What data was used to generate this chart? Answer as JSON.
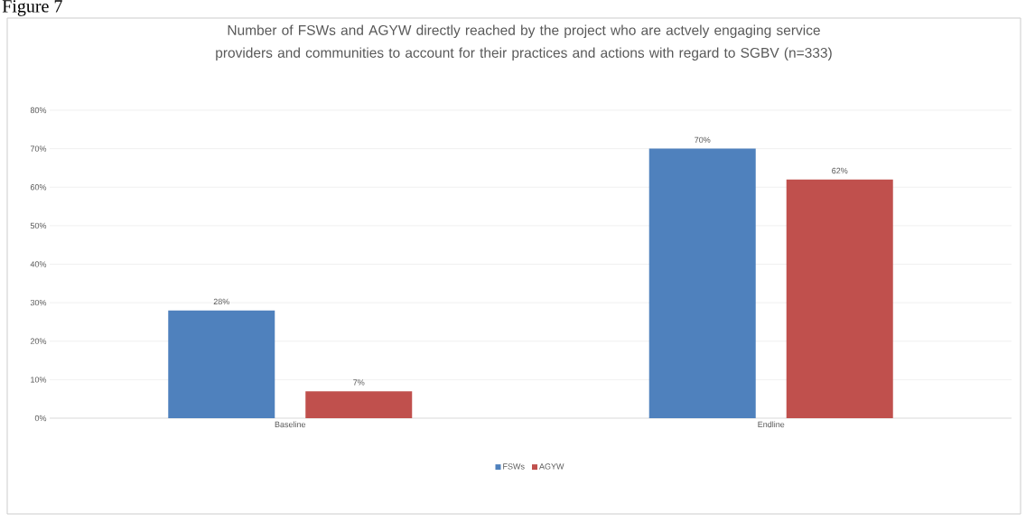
{
  "chart_data": {
    "type": "bar",
    "title": "Number of FSWs and AGYW directly reached by the project who are actvely engaging service providers and communities to account for their practices and actions with regard to SGBV (n=333)",
    "annotations": [
      "Figure 7"
    ],
    "categories": [
      "Baseline",
      "Endline"
    ],
    "series": [
      {
        "name": "FSWs",
        "color": "#4f81bd",
        "values": [
          28,
          70
        ],
        "value_labels": [
          "28%",
          "70%"
        ]
      },
      {
        "name": "AGYW",
        "color": "#c0504d",
        "values": [
          7,
          62
        ],
        "value_labels": [
          "7%",
          "62%"
        ]
      }
    ],
    "ylim": [
      0,
      80
    ],
    "yticks": [
      {
        "value": 0,
        "label": "0%"
      },
      {
        "value": 10,
        "label": "10%"
      },
      {
        "value": 20,
        "label": "20%"
      },
      {
        "value": 30,
        "label": "30%"
      },
      {
        "value": 40,
        "label": "40%"
      },
      {
        "value": 50,
        "label": "50%"
      },
      {
        "value": 60,
        "label": "60%"
      },
      {
        "value": 70,
        "label": "70%"
      },
      {
        "value": 80,
        "label": "80%"
      }
    ],
    "grid": "y",
    "legend": "bottom"
  }
}
